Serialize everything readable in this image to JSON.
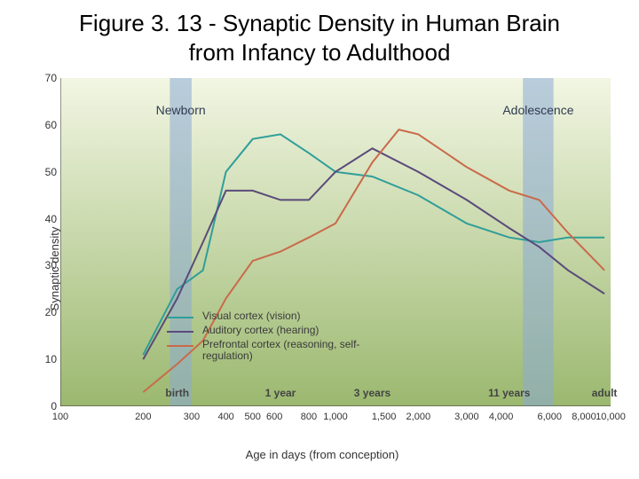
{
  "title": "Figure 3. 13 - Synaptic Density in Human Brain from Infancy to Adulthood",
  "chart": {
    "type": "line",
    "xlabel": "Age in days (from conception)",
    "ylabel": "Synaptic density",
    "x_scale": "log",
    "xlim": [
      100,
      10000
    ],
    "ylim": [
      0,
      70
    ],
    "x_ticks": [
      100,
      200,
      300,
      400,
      500,
      600,
      800,
      1000,
      1500,
      2000,
      3000,
      4000,
      6000,
      8000,
      10000
    ],
    "x_tick_labels": [
      "100",
      "200",
      "300",
      "400",
      "500",
      "600",
      "800",
      "1,000",
      "1,500",
      "2,000",
      "3,000",
      "4,000",
      "6,000",
      "8,000",
      "10,000"
    ],
    "y_ticks": [
      0,
      10,
      20,
      30,
      40,
      50,
      60,
      70
    ],
    "x_annotations": [
      {
        "x": 266,
        "label": "birth"
      },
      {
        "x": 631,
        "label": "1 year"
      },
      {
        "x": 1361,
        "label": "3 years"
      },
      {
        "x": 4281,
        "label": "11 years"
      },
      {
        "x": 9500,
        "label": "adult"
      }
    ],
    "background_gradient": {
      "top": "#f2f6e3",
      "bottom": "#9bb86f"
    },
    "axis_color": "#333333",
    "tick_font_size": 12,
    "label_font_size": 13,
    "bands": [
      {
        "label": "Newborn",
        "x_from": 250,
        "x_to": 300,
        "fill": "#8aa9d6",
        "opacity": 0.55
      },
      {
        "label": "Adolescence",
        "x_from": 4800,
        "x_to": 6200,
        "fill": "#8aa9d6",
        "opacity": 0.55
      }
    ],
    "series": [
      {
        "name": "Visual cortex (vision)",
        "color": "#2f9e99",
        "line_width": 2,
        "points": [
          {
            "x": 200,
            "y": 11
          },
          {
            "x": 266,
            "y": 25
          },
          {
            "x": 330,
            "y": 29
          },
          {
            "x": 400,
            "y": 50
          },
          {
            "x": 500,
            "y": 57
          },
          {
            "x": 631,
            "y": 58
          },
          {
            "x": 800,
            "y": 54
          },
          {
            "x": 1000,
            "y": 50
          },
          {
            "x": 1361,
            "y": 49
          },
          {
            "x": 2000,
            "y": 45
          },
          {
            "x": 3000,
            "y": 39
          },
          {
            "x": 4281,
            "y": 36
          },
          {
            "x": 5500,
            "y": 35
          },
          {
            "x": 7000,
            "y": 36
          },
          {
            "x": 9500,
            "y": 36
          }
        ]
      },
      {
        "name": "Auditory cortex (hearing)",
        "color": "#5a4a7a",
        "line_width": 2,
        "points": [
          {
            "x": 200,
            "y": 10
          },
          {
            "x": 266,
            "y": 23
          },
          {
            "x": 330,
            "y": 35
          },
          {
            "x": 400,
            "y": 46
          },
          {
            "x": 500,
            "y": 46
          },
          {
            "x": 631,
            "y": 44
          },
          {
            "x": 800,
            "y": 44
          },
          {
            "x": 1000,
            "y": 50
          },
          {
            "x": 1361,
            "y": 55
          },
          {
            "x": 2000,
            "y": 50
          },
          {
            "x": 3000,
            "y": 44
          },
          {
            "x": 4281,
            "y": 38
          },
          {
            "x": 5500,
            "y": 34
          },
          {
            "x": 7000,
            "y": 29
          },
          {
            "x": 9500,
            "y": 24
          }
        ]
      },
      {
        "name": "Prefrontal cortex (reasoning, self-regulation)",
        "color": "#c96a4a",
        "line_width": 2,
        "points": [
          {
            "x": 200,
            "y": 3
          },
          {
            "x": 266,
            "y": 9
          },
          {
            "x": 330,
            "y": 14
          },
          {
            "x": 400,
            "y": 23
          },
          {
            "x": 500,
            "y": 31
          },
          {
            "x": 631,
            "y": 33
          },
          {
            "x": 800,
            "y": 36
          },
          {
            "x": 1000,
            "y": 39
          },
          {
            "x": 1361,
            "y": 52
          },
          {
            "x": 1700,
            "y": 59
          },
          {
            "x": 2000,
            "y": 58
          },
          {
            "x": 3000,
            "y": 51
          },
          {
            "x": 4281,
            "y": 46
          },
          {
            "x": 5500,
            "y": 44
          },
          {
            "x": 7000,
            "y": 37
          },
          {
            "x": 9500,
            "y": 29
          }
        ]
      }
    ]
  }
}
